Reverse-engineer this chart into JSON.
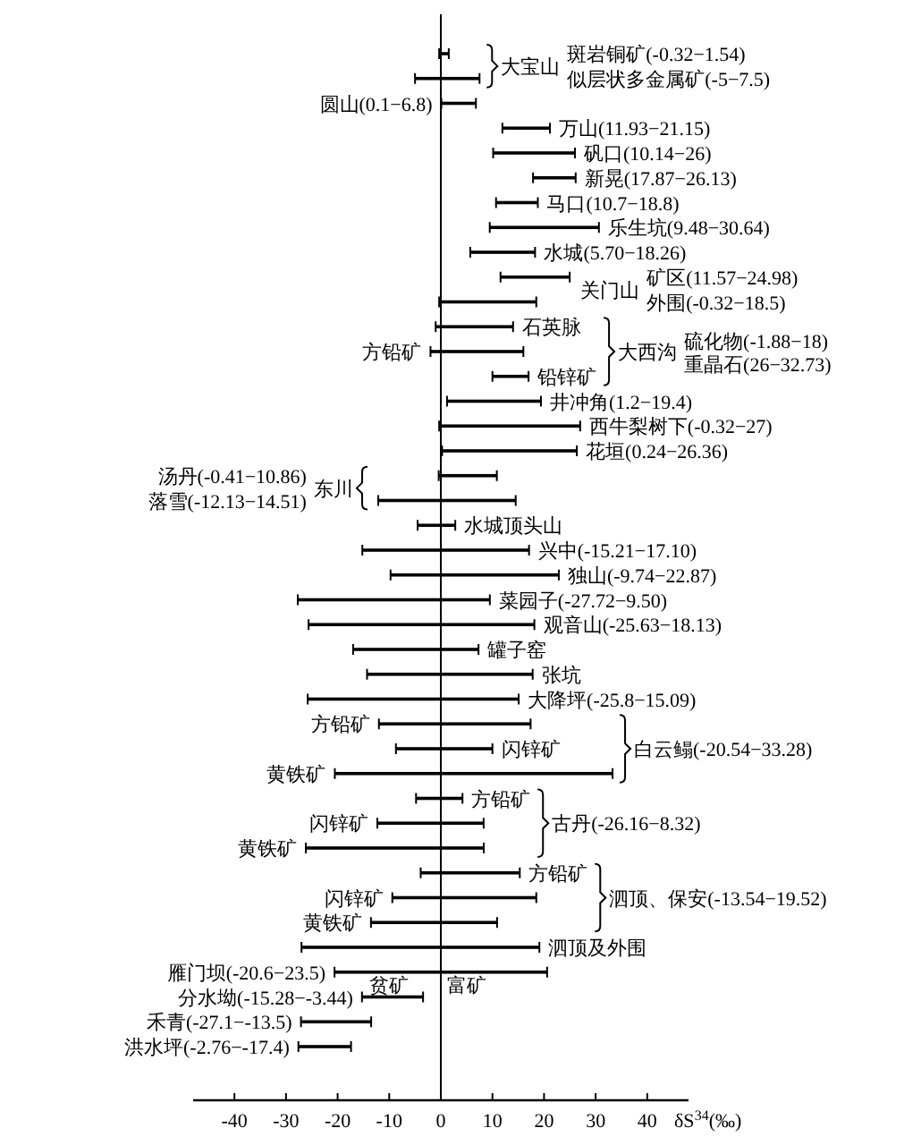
{
  "chart_data": {
    "type": "bar",
    "orientation": "horizontal",
    "color": "#000000",
    "categories": [
      "斑岩铜矿(-0.32−1.54)",
      "似层状多金属矿(-5−7.5)",
      "圆山(0.1−6.8)",
      "万山(11.93−21.15)",
      "矾口(10.14−26)",
      "新晃(17.87−26.13)",
      "马口(10.7−18.8)",
      "乐生坑(9.48−30.64)",
      "水城(5.70−18.26)",
      "矿区(11.57−24.98)",
      "外围(-0.32−18.5)",
      "石英脉",
      "方铅矿",
      "铅锌矿",
      "井冲角(1.2−19.4)",
      "西牛梨树下(-0.32−27)",
      "花垣(0.24−26.36)",
      "汤丹(-0.41−10.86)",
      "落雪(-12.13−14.51)",
      "水城顶头山",
      "兴中(-15.21−17.10)",
      "独山(-9.74−22.87)",
      "菜园子(-27.72−9.50)",
      "观音山(-25.63−18.13)",
      "罐子窑",
      "张坑",
      "大降坪(-25.8−15.09)",
      "方铅矿",
      "闪锌矿",
      "黄铁矿",
      "方铅矿",
      "闪锌矿",
      "黄铁矿",
      "方铅矿",
      "闪锌矿",
      "黄铁矿",
      "泗顶及外围",
      "雁门坝(-20.6−23.5)",
      "分水坳(-15.28−-3.44)",
      "禾青(-27.1−-13.5)",
      "洪水坪(-2.76−-17.4)"
    ],
    "base": [
      -0.32,
      -5,
      0.1,
      11.93,
      10.14,
      17.87,
      10.7,
      9.48,
      5.7,
      11.57,
      -0.32,
      -1,
      -2,
      10,
      1.2,
      -0.32,
      0.24,
      -0.41,
      -12.13,
      -4.5,
      -15.21,
      -9.74,
      -27.72,
      -25.63,
      -17,
      -14.3,
      -25.8,
      -12,
      -8.7,
      -20.54,
      -4.8,
      -12.3,
      -26.16,
      -3.9,
      -9.4,
      -13.54,
      -27,
      -20.6,
      -15.28,
      -27.1,
      -27.6
    ],
    "values": [
      1.86,
      12.5,
      6.7,
      9.22,
      15.86,
      8.26,
      8.1,
      21.16,
      12.56,
      13.41,
      18.82,
      15,
      18,
      7,
      18.2,
      27.32,
      26.12,
      11.27,
      26.64,
      7.3,
      32.31,
      32.61,
      37.22,
      43.76,
      24.3,
      32.1,
      40.89,
      29.4,
      18.7,
      53.82,
      9,
      20.6,
      34.48,
      19.2,
      27.9,
      24.44,
      46.1,
      41.2,
      11.84,
      13.6,
      10.2
    ],
    "xlim": [
      -48,
      48
    ],
    "xticks": [
      -40,
      -30,
      -20,
      -10,
      0,
      10,
      20,
      30,
      40
    ],
    "xlabel": "δS$^{34}$(‰)",
    "annotations": [
      "大宝山",
      "关门山",
      "大西沟",
      "硫化物(-1.88−18)",
      "重晶石(26−32.73)",
      "东川",
      "白云鳎(-20.54−33.28)",
      "古丹(-26.16−8.32)",
      "泗顶、保安(-13.54−19.52)",
      "贫矿",
      "富矿"
    ]
  }
}
